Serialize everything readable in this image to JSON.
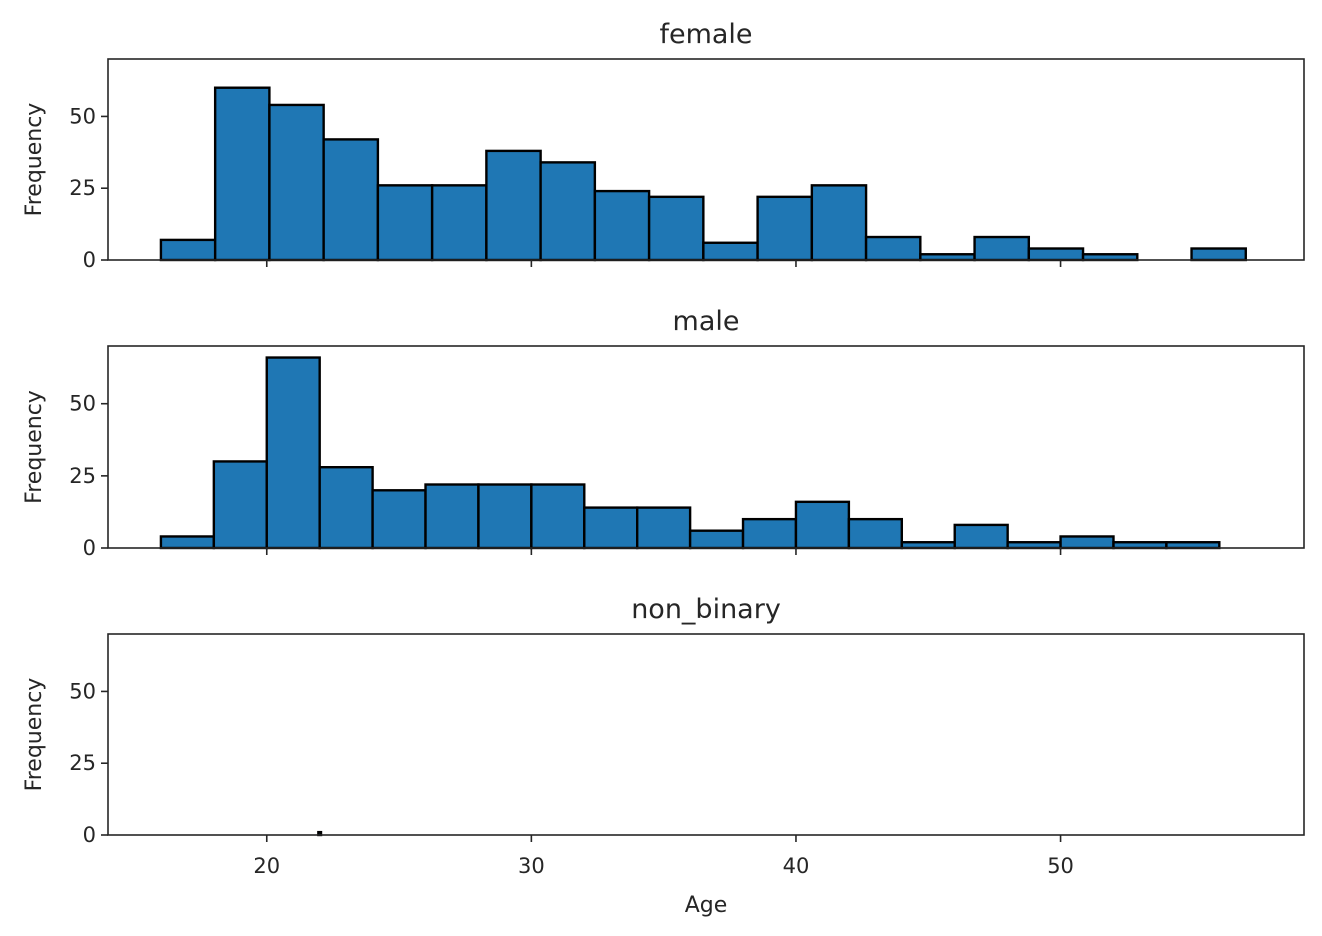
{
  "chart_data": {
    "type": "bar",
    "subtype": "histogram",
    "xlabel": "Age",
    "ylabel": "Frequency",
    "xlim": [
      14,
      59.2
    ],
    "ylim": [
      0,
      70
    ],
    "x_ticks": [
      20,
      30,
      40,
      50
    ],
    "y_ticks": [
      0,
      25,
      50
    ],
    "shared_x": true,
    "grid": false,
    "bar_color": "#1f77b4",
    "edge_color": "#000000",
    "panels": [
      {
        "title": "female",
        "bin_start": 16,
        "bin_width": 2.05,
        "values": [
          7,
          60,
          54,
          42,
          26,
          26,
          38,
          34,
          24,
          22,
          6,
          22,
          26,
          8,
          2,
          8,
          4,
          2,
          0,
          4
        ]
      },
      {
        "title": "male",
        "bin_start": 16,
        "bin_width": 2.0,
        "values": [
          4,
          30,
          66,
          28,
          20,
          22,
          22,
          22,
          14,
          14,
          6,
          10,
          16,
          10,
          2,
          8,
          2,
          4,
          2,
          2
        ]
      },
      {
        "title": "non_binary",
        "bin_start": 21.95,
        "bin_width": 0.1,
        "values": [
          1
        ]
      }
    ]
  }
}
